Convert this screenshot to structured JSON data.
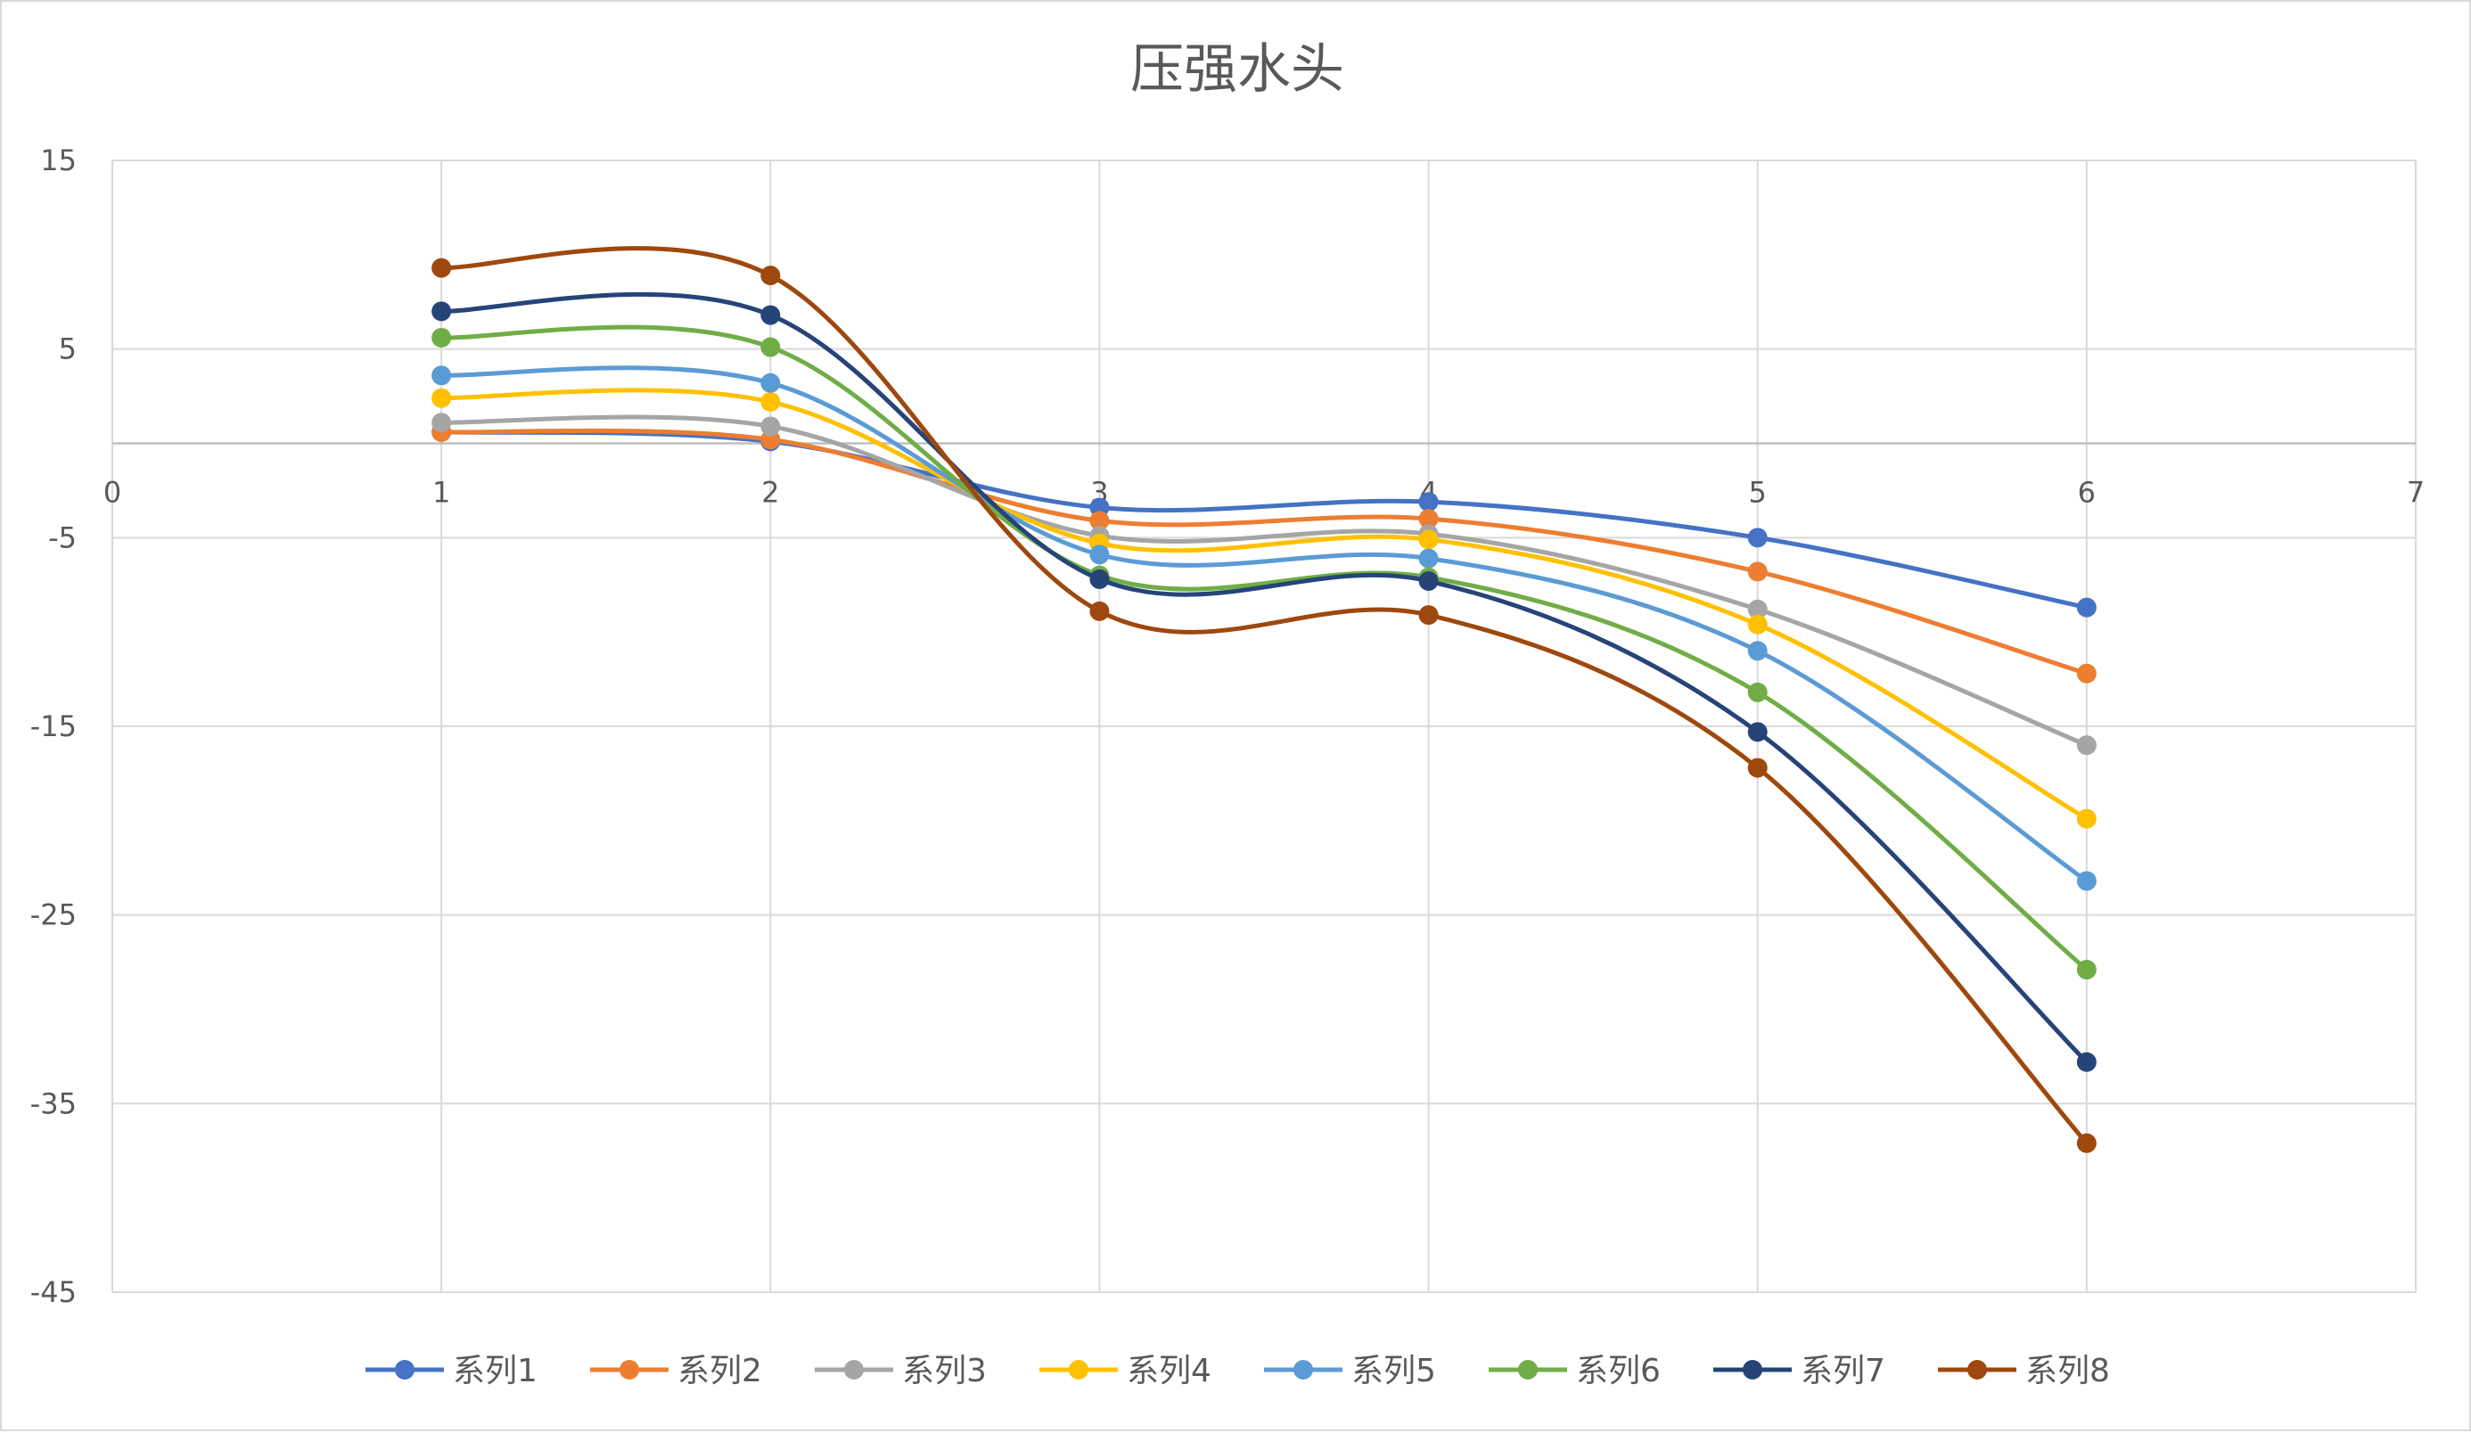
{
  "chart_data": {
    "type": "scatter",
    "title": "压强水头",
    "xlabel": "",
    "ylabel": "",
    "xlim": [
      0,
      7
    ],
    "ylim": [
      -45,
      15
    ],
    "x_ticks": [
      "0",
      "1",
      "2",
      "3",
      "4",
      "5",
      "6",
      "7"
    ],
    "y_ticks": [
      "15",
      "5",
      "-5",
      "-15",
      "-25",
      "-35",
      "-45"
    ],
    "y_tick_values": [
      15,
      5,
      -5,
      -15,
      -25,
      -35,
      -45
    ],
    "x_tick_values": [
      0,
      1,
      2,
      3,
      4,
      5,
      6,
      7
    ],
    "grid": true,
    "smooth_lines": true,
    "markers": true,
    "legend_position": "bottom",
    "x": [
      1,
      2,
      3,
      4,
      5,
      6
    ],
    "series": [
      {
        "name": "系列1",
        "color": "#4472C4",
        "values": [
          0.6,
          0.1,
          -3.4,
          -3.1,
          -5.0,
          -8.7
        ]
      },
      {
        "name": "系列2",
        "color": "#ED7D31",
        "values": [
          0.6,
          0.2,
          -4.1,
          -4.0,
          -6.8,
          -12.2
        ]
      },
      {
        "name": "系列3",
        "color": "#A5A5A5",
        "values": [
          1.1,
          0.9,
          -4.9,
          -4.8,
          -8.8,
          -16.0
        ]
      },
      {
        "name": "系列4",
        "color": "#FFC000",
        "values": [
          2.4,
          2.2,
          -5.3,
          -5.1,
          -9.6,
          -19.9
        ]
      },
      {
        "name": "系列5",
        "color": "#5B9BD5",
        "values": [
          3.6,
          3.2,
          -5.9,
          -6.1,
          -11.0,
          -23.2
        ]
      },
      {
        "name": "系列6",
        "color": "#70AD47",
        "values": [
          5.6,
          5.1,
          -7.0,
          -7.1,
          -13.2,
          -27.9
        ]
      },
      {
        "name": "系列7",
        "color": "#264478",
        "values": [
          7.0,
          6.8,
          -7.2,
          -7.3,
          -15.3,
          -32.8
        ]
      },
      {
        "name": "系列8",
        "color": "#9E480E",
        "values": [
          9.3,
          8.9,
          -8.9,
          -9.1,
          -17.2,
          -37.1
        ]
      }
    ]
  }
}
